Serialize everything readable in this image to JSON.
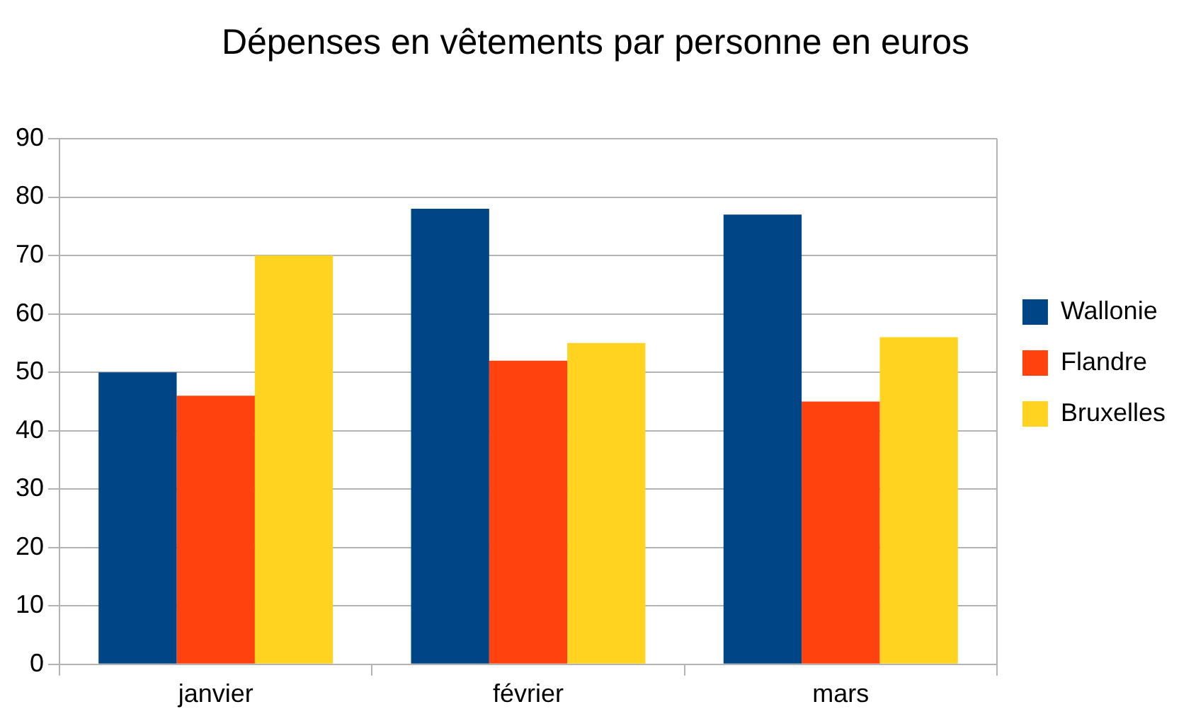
{
  "chart_data": {
    "type": "bar",
    "title": "Dépenses en vêtements par personne en euros",
    "categories": [
      "janvier",
      "février",
      "mars"
    ],
    "series": [
      {
        "name": "Wallonie",
        "color": "#004586",
        "values": [
          50,
          78,
          77
        ]
      },
      {
        "name": "Flandre",
        "color": "#ff420e",
        "values": [
          46,
          52,
          45
        ]
      },
      {
        "name": "Bruxelles",
        "color": "#ffd320",
        "values": [
          70,
          55,
          56
        ]
      }
    ],
    "ylim": [
      0,
      90
    ],
    "yticks": [
      0,
      10,
      20,
      30,
      40,
      50,
      60,
      70,
      80,
      90
    ],
    "grid": "y",
    "legend": "right"
  }
}
